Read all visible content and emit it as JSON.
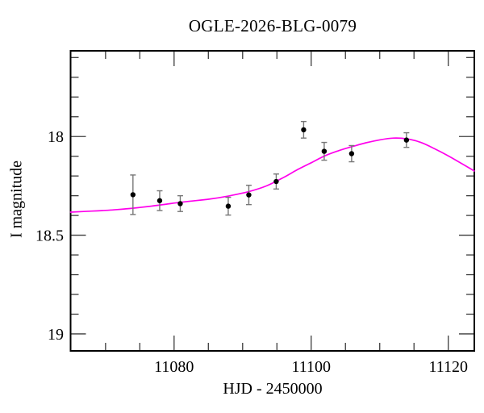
{
  "chart_data": {
    "type": "scatter",
    "title": "OGLE-2026-BLG-0079",
    "xlabel": "HJD - 2450000",
    "ylabel": "I magnitude",
    "xlim": [
      11064.9,
      11123.8
    ],
    "ylim": [
      19.086,
      17.566
    ],
    "y_axis_inverted": true,
    "grid": false,
    "legend": "none",
    "x_major_ticks": [
      {
        "value": 11080,
        "label": "11080"
      },
      {
        "value": 11100,
        "label": "11100"
      },
      {
        "value": 11120,
        "label": "11120"
      }
    ],
    "x_minor_ticks": [
      11070,
      11075,
      11085,
      11090,
      11095,
      11105,
      11110,
      11115
    ],
    "y_major_ticks": [
      {
        "value": 18.0,
        "label": "18"
      },
      {
        "value": 18.5,
        "label": "18.5"
      },
      {
        "value": 19.0,
        "label": "19"
      }
    ],
    "y_minor_ticks": [
      17.6,
      17.7,
      17.8,
      17.9,
      18.1,
      18.2,
      18.3,
      18.4,
      18.6,
      18.7,
      18.8,
      18.9
    ],
    "points": [
      {
        "hjd": 11074.0,
        "mag": 18.295,
        "err": 0.1
      },
      {
        "hjd": 11077.9,
        "mag": 18.325,
        "err": 0.05
      },
      {
        "hjd": 11080.9,
        "mag": 18.34,
        "err": 0.04
      },
      {
        "hjd": 11087.9,
        "mag": 18.353,
        "err": 0.045
      },
      {
        "hjd": 11090.9,
        "mag": 18.296,
        "err": 0.049
      },
      {
        "hjd": 11094.9,
        "mag": 18.228,
        "err": 0.038
      },
      {
        "hjd": 11098.9,
        "mag": 17.966,
        "err": 0.042
      },
      {
        "hjd": 11101.9,
        "mag": 18.075,
        "err": 0.045
      },
      {
        "hjd": 11105.9,
        "mag": 18.087,
        "err": 0.041
      },
      {
        "hjd": 11113.9,
        "mag": 18.018,
        "err": 0.037
      }
    ],
    "model_curve": [
      [
        11064.9,
        18.383
      ],
      [
        11068.0,
        18.378
      ],
      [
        11071.0,
        18.372
      ],
      [
        11074.0,
        18.363
      ],
      [
        11078.0,
        18.347
      ],
      [
        11081.0,
        18.333
      ],
      [
        11085.0,
        18.318
      ],
      [
        11088.0,
        18.301
      ],
      [
        11091.0,
        18.278
      ],
      [
        11093.5,
        18.25
      ],
      [
        11096.0,
        18.207
      ],
      [
        11098.0,
        18.168
      ],
      [
        11100.0,
        18.133
      ],
      [
        11102.0,
        18.098
      ],
      [
        11104.0,
        18.072
      ],
      [
        11106.0,
        18.051
      ],
      [
        11108.0,
        18.032
      ],
      [
        11110.0,
        18.017
      ],
      [
        11112.0,
        18.008
      ],
      [
        11114.0,
        18.012
      ],
      [
        11116.0,
        18.03
      ],
      [
        11118.0,
        18.062
      ],
      [
        11120.0,
        18.098
      ],
      [
        11122.0,
        18.138
      ],
      [
        11123.8,
        18.175
      ]
    ],
    "model_peak": {
      "t0": 11112,
      "peak_mag": 18.008
    },
    "colors": {
      "model_curve": "#ff00ec",
      "data_point": "#000000",
      "error_bar": "#767676",
      "frame": "#000000",
      "tick": "#3c3c3c",
      "background": "#ffffff"
    }
  }
}
